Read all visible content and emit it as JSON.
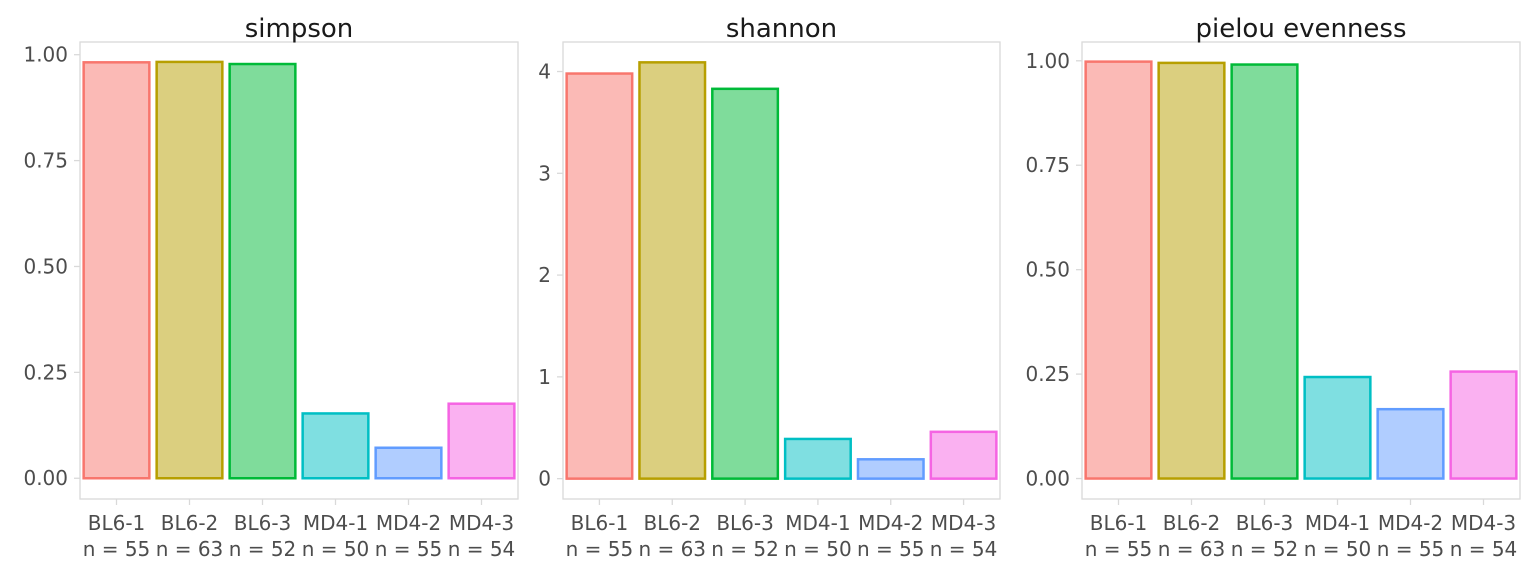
{
  "colors": {
    "fill": [
      "#F8766D",
      "#B79F00",
      "#00BA38",
      "#00BFC4",
      "#619CFF",
      "#F564E3"
    ],
    "stroke": [
      "#F8766D",
      "#B79F00",
      "#00BA38",
      "#00BFC4",
      "#619CFF",
      "#F564E3"
    ]
  },
  "chart_data": [
    {
      "type": "bar",
      "title": "simpson",
      "categories": [
        "BL6-1",
        "BL6-2",
        "BL6-3",
        "MD4-1",
        "MD4-2",
        "MD4-3"
      ],
      "sample_sizes": [
        "n = 55",
        "n = 63",
        "n = 52",
        "n = 50",
        "n = 55",
        "n = 54"
      ],
      "values": [
        0.982,
        0.983,
        0.978,
        0.153,
        0.072,
        0.176
      ],
      "yticks": [
        "0.00",
        "0.25",
        "0.50",
        "0.75",
        "1.00"
      ],
      "ytick_values": [
        0,
        0.25,
        0.5,
        0.75,
        1.0
      ],
      "ylim": [
        -0.049,
        1.03
      ],
      "xlabel": "",
      "ylabel": "",
      "grid": false
    },
    {
      "type": "bar",
      "title": "shannon",
      "categories": [
        "BL6-1",
        "BL6-2",
        "BL6-3",
        "MD4-1",
        "MD4-2",
        "MD4-3"
      ],
      "sample_sizes": [
        "n = 55",
        "n = 63",
        "n = 52",
        "n = 50",
        "n = 55",
        "n = 54"
      ],
      "values": [
        3.98,
        4.09,
        3.83,
        0.39,
        0.19,
        0.46
      ],
      "yticks": [
        "0",
        "1",
        "2",
        "3",
        "4"
      ],
      "ytick_values": [
        0,
        1,
        2,
        3,
        4
      ],
      "ylim": [
        -0.2,
        4.29
      ],
      "xlabel": "",
      "ylabel": "",
      "grid": false
    },
    {
      "type": "bar",
      "title": "pielou evenness",
      "categories": [
        "BL6-1",
        "BL6-2",
        "BL6-3",
        "MD4-1",
        "MD4-2",
        "MD4-3"
      ],
      "sample_sizes": [
        "n = 55",
        "n = 63",
        "n = 52",
        "n = 50",
        "n = 55",
        "n = 54"
      ],
      "values": [
        0.998,
        0.995,
        0.991,
        0.243,
        0.166,
        0.256
      ],
      "yticks": [
        "0.00",
        "0.25",
        "0.50",
        "0.75",
        "1.00"
      ],
      "ytick_values": [
        0,
        0.25,
        0.5,
        0.75,
        1.0
      ],
      "ylim": [
        -0.049,
        1.045
      ],
      "xlabel": "",
      "ylabel": "",
      "grid": false
    }
  ]
}
